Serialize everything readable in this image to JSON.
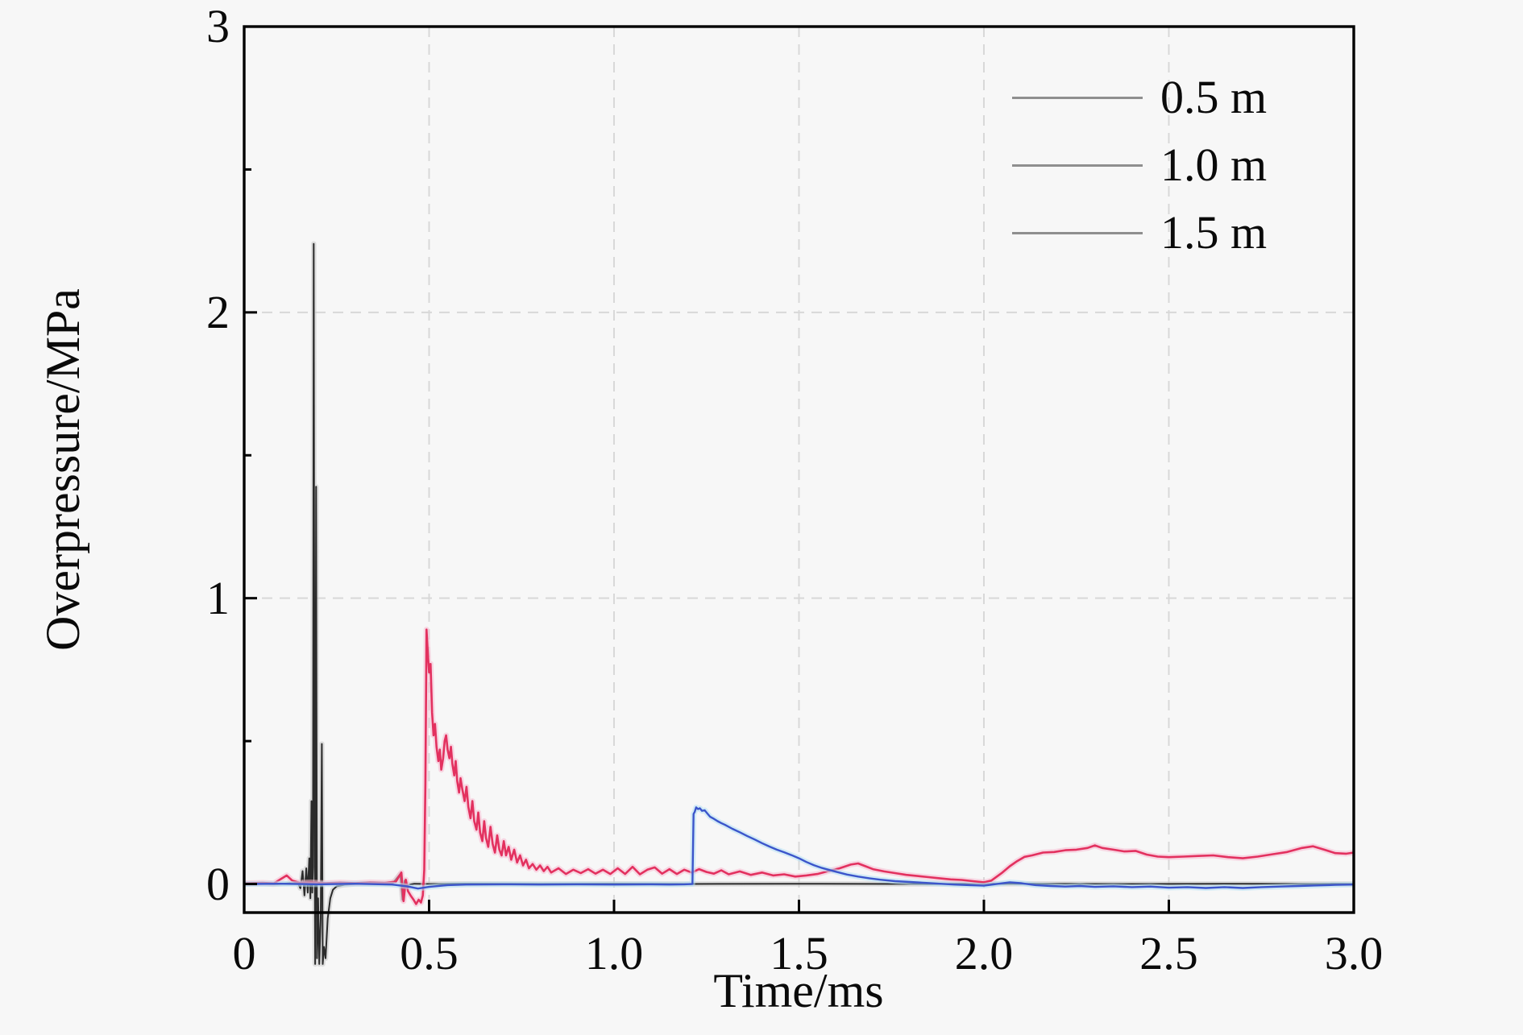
{
  "chart_data": {
    "type": "line",
    "title": "",
    "xlabel": "Time/ms",
    "ylabel": "Overpressure/MPa",
    "xlim": [
      0,
      3.0
    ],
    "ylim": [
      -0.1,
      3.0
    ],
    "background_color": "#f7f7f7",
    "frame_color": "#000000",
    "grid": {
      "style": "dashed",
      "color": "#d8d8d8",
      "x_values": [
        0.5,
        1.0,
        1.5,
        2.0,
        2.5
      ],
      "y_values": [
        1,
        2
      ]
    },
    "x_ticks": {
      "values": [
        0,
        0.5,
        1.0,
        1.5,
        2.0,
        2.5,
        3.0
      ],
      "labels": [
        "0",
        "0.5",
        "1.0",
        "1.5",
        "2.0",
        "2.5",
        "3.0"
      ]
    },
    "y_ticks": {
      "values": [
        0,
        1,
        2,
        3
      ],
      "labels": [
        "0",
        "1",
        "2",
        "3"
      ],
      "minor_values": [
        0.5,
        1.5,
        2.5
      ]
    },
    "legend": {
      "position": "top-right",
      "line_color": "#8f8f8f",
      "entries": [
        "0.5 m",
        "1.0 m",
        "1.5 m"
      ]
    },
    "series": [
      {
        "name": "0.5 m",
        "color": "#2b2b2b",
        "halo": "#c9c9c9",
        "width": 2.0,
        "points": [
          [
            0,
            0
          ],
          [
            0.04,
            0.001
          ],
          [
            0.08,
            -0.001
          ],
          [
            0.12,
            0.002
          ],
          [
            0.145,
            0.004
          ],
          [
            0.152,
            -0.015
          ],
          [
            0.158,
            0.045
          ],
          [
            0.163,
            -0.04
          ],
          [
            0.168,
            0.055
          ],
          [
            0.172,
            -0.03
          ],
          [
            0.176,
            0.09
          ],
          [
            0.179,
            -0.05
          ],
          [
            0.182,
            0.29
          ],
          [
            0.184,
            -0.03
          ],
          [
            0.186,
            0.06
          ],
          [
            0.188,
            2.24
          ],
          [
            0.1905,
            0.25
          ],
          [
            0.192,
            -0.28
          ],
          [
            0.1945,
            1.39
          ],
          [
            0.197,
            -0.26
          ],
          [
            0.2,
            -0.05
          ],
          [
            0.203,
            -0.28
          ],
          [
            0.207,
            -0.12
          ],
          [
            0.21,
            0.49
          ],
          [
            0.2125,
            -0.28
          ],
          [
            0.216,
            -0.22
          ],
          [
            0.22,
            -0.26
          ],
          [
            0.226,
            -0.12
          ],
          [
            0.233,
            -0.05
          ],
          [
            0.24,
            -0.02
          ],
          [
            0.25,
            -0.008
          ],
          [
            0.27,
            -0.003
          ],
          [
            0.3,
            0
          ],
          [
            0.35,
            0.001
          ],
          [
            0.4,
            0
          ],
          [
            0.422,
            0.035
          ],
          [
            0.428,
            -0.055
          ],
          [
            0.434,
            0.012
          ],
          [
            0.44,
            -0.004
          ],
          [
            0.46,
            0.001
          ],
          [
            0.5,
            0
          ],
          [
            0.6,
            0.001
          ],
          [
            0.8,
            0
          ],
          [
            1.0,
            0.001
          ],
          [
            1.2,
            0
          ],
          [
            1.5,
            0.001
          ],
          [
            1.8,
            0
          ],
          [
            2.1,
            0.001
          ],
          [
            2.4,
            0
          ],
          [
            2.7,
            0.001
          ],
          [
            3.0,
            0
          ]
        ]
      },
      {
        "name": "1.0 m",
        "color": "#e3315f",
        "halo": "#f8bcd2",
        "width": 2.6,
        "points": [
          [
            0,
            0.002
          ],
          [
            0.05,
            0.004
          ],
          [
            0.08,
            0.002
          ],
          [
            0.1,
            0.018
          ],
          [
            0.115,
            0.03
          ],
          [
            0.13,
            0.012
          ],
          [
            0.15,
            0.004
          ],
          [
            0.18,
            0.006
          ],
          [
            0.22,
            0.003
          ],
          [
            0.26,
            0.005
          ],
          [
            0.3,
            0.003
          ],
          [
            0.34,
            0.006
          ],
          [
            0.38,
            0.004
          ],
          [
            0.41,
            0.008
          ],
          [
            0.425,
            0.04
          ],
          [
            0.431,
            -0.06
          ],
          [
            0.437,
            0.015
          ],
          [
            0.443,
            -0.025
          ],
          [
            0.45,
            -0.04
          ],
          [
            0.458,
            -0.055
          ],
          [
            0.465,
            -0.07
          ],
          [
            0.472,
            -0.055
          ],
          [
            0.478,
            -0.065
          ],
          [
            0.483,
            -0.04
          ],
          [
            0.487,
            0.05
          ],
          [
            0.49,
            0.35
          ],
          [
            0.493,
            0.89
          ],
          [
            0.497,
            0.8
          ],
          [
            0.5,
            0.74
          ],
          [
            0.504,
            0.77
          ],
          [
            0.508,
            0.6
          ],
          [
            0.512,
            0.52
          ],
          [
            0.516,
            0.56
          ],
          [
            0.52,
            0.48
          ],
          [
            0.525,
            0.43
          ],
          [
            0.529,
            0.47
          ],
          [
            0.533,
            0.4
          ],
          [
            0.538,
            0.44
          ],
          [
            0.542,
            0.5
          ],
          [
            0.546,
            0.52
          ],
          [
            0.55,
            0.47
          ],
          [
            0.555,
            0.44
          ],
          [
            0.559,
            0.48
          ],
          [
            0.563,
            0.42
          ],
          [
            0.568,
            0.38
          ],
          [
            0.572,
            0.43
          ],
          [
            0.576,
            0.36
          ],
          [
            0.581,
            0.32
          ],
          [
            0.585,
            0.37
          ],
          [
            0.59,
            0.33
          ],
          [
            0.596,
            0.29
          ],
          [
            0.601,
            0.34
          ],
          [
            0.606,
            0.27
          ],
          [
            0.612,
            0.23
          ],
          [
            0.617,
            0.29
          ],
          [
            0.622,
            0.22
          ],
          [
            0.628,
            0.19
          ],
          [
            0.633,
            0.25
          ],
          [
            0.638,
            0.18
          ],
          [
            0.644,
            0.15
          ],
          [
            0.649,
            0.22
          ],
          [
            0.654,
            0.16
          ],
          [
            0.66,
            0.13
          ],
          [
            0.666,
            0.2
          ],
          [
            0.672,
            0.14
          ],
          [
            0.678,
            0.11
          ],
          [
            0.684,
            0.17
          ],
          [
            0.69,
            0.12
          ],
          [
            0.696,
            0.1
          ],
          [
            0.702,
            0.15
          ],
          [
            0.708,
            0.1
          ],
          [
            0.715,
            0.13
          ],
          [
            0.722,
            0.085
          ],
          [
            0.73,
            0.12
          ],
          [
            0.738,
            0.075
          ],
          [
            0.746,
            0.1
          ],
          [
            0.754,
            0.065
          ],
          [
            0.762,
            0.085
          ],
          [
            0.77,
            0.055
          ],
          [
            0.78,
            0.07
          ],
          [
            0.79,
            0.05
          ],
          [
            0.8,
            0.065
          ],
          [
            0.81,
            0.045
          ],
          [
            0.82,
            0.06
          ],
          [
            0.83,
            0.04
          ],
          [
            0.85,
            0.055
          ],
          [
            0.87,
            0.035
          ],
          [
            0.89,
            0.05
          ],
          [
            0.91,
            0.038
          ],
          [
            0.93,
            0.052
          ],
          [
            0.95,
            0.036
          ],
          [
            0.97,
            0.05
          ],
          [
            0.99,
            0.035
          ],
          [
            1.01,
            0.055
          ],
          [
            1.03,
            0.035
          ],
          [
            1.05,
            0.06
          ],
          [
            1.07,
            0.034
          ],
          [
            1.09,
            0.05
          ],
          [
            1.11,
            0.058
          ],
          [
            1.13,
            0.036
          ],
          [
            1.15,
            0.052
          ],
          [
            1.17,
            0.035
          ],
          [
            1.19,
            0.05
          ],
          [
            1.21,
            0.04
          ],
          [
            1.23,
            0.052
          ],
          [
            1.25,
            0.042
          ],
          [
            1.27,
            0.036
          ],
          [
            1.29,
            0.048
          ],
          [
            1.31,
            0.034
          ],
          [
            1.34,
            0.044
          ],
          [
            1.37,
            0.032
          ],
          [
            1.4,
            0.04
          ],
          [
            1.43,
            0.03
          ],
          [
            1.46,
            0.034
          ],
          [
            1.49,
            0.026
          ],
          [
            1.52,
            0.03
          ],
          [
            1.55,
            0.035
          ],
          [
            1.58,
            0.045
          ],
          [
            1.61,
            0.055
          ],
          [
            1.64,
            0.068
          ],
          [
            1.66,
            0.072
          ],
          [
            1.68,
            0.062
          ],
          [
            1.7,
            0.052
          ],
          [
            1.73,
            0.044
          ],
          [
            1.76,
            0.038
          ],
          [
            1.79,
            0.032
          ],
          [
            1.82,
            0.028
          ],
          [
            1.85,
            0.024
          ],
          [
            1.88,
            0.02
          ],
          [
            1.91,
            0.016
          ],
          [
            1.94,
            0.014
          ],
          [
            1.97,
            0.01
          ],
          [
            2.0,
            0.006
          ],
          [
            2.02,
            0.012
          ],
          [
            2.05,
            0.04
          ],
          [
            2.07,
            0.062
          ],
          [
            2.09,
            0.08
          ],
          [
            2.11,
            0.095
          ],
          [
            2.13,
            0.1
          ],
          [
            2.16,
            0.11
          ],
          [
            2.19,
            0.112
          ],
          [
            2.22,
            0.118
          ],
          [
            2.25,
            0.12
          ],
          [
            2.28,
            0.126
          ],
          [
            2.3,
            0.135
          ],
          [
            2.32,
            0.126
          ],
          [
            2.35,
            0.12
          ],
          [
            2.38,
            0.114
          ],
          [
            2.41,
            0.116
          ],
          [
            2.44,
            0.103
          ],
          [
            2.47,
            0.096
          ],
          [
            2.5,
            0.094
          ],
          [
            2.54,
            0.096
          ],
          [
            2.58,
            0.098
          ],
          [
            2.62,
            0.1
          ],
          [
            2.66,
            0.094
          ],
          [
            2.7,
            0.09
          ],
          [
            2.74,
            0.096
          ],
          [
            2.78,
            0.104
          ],
          [
            2.82,
            0.112
          ],
          [
            2.86,
            0.126
          ],
          [
            2.89,
            0.132
          ],
          [
            2.92,
            0.12
          ],
          [
            2.95,
            0.108
          ],
          [
            2.98,
            0.106
          ],
          [
            3.0,
            0.11
          ]
        ]
      },
      {
        "name": "1.5 m",
        "color": "#3b55cb",
        "halo": "#b4e0f6",
        "width": 2.4,
        "points": [
          [
            0,
            0
          ],
          [
            0.1,
            0.001
          ],
          [
            0.2,
            -0.001
          ],
          [
            0.3,
            0.001
          ],
          [
            0.4,
            -0.002
          ],
          [
            0.44,
            -0.008
          ],
          [
            0.47,
            -0.016
          ],
          [
            0.5,
            -0.01
          ],
          [
            0.55,
            -0.004
          ],
          [
            0.6,
            -0.002
          ],
          [
            0.7,
            -0.001
          ],
          [
            0.8,
            -0.002
          ],
          [
            0.9,
            -0.001
          ],
          [
            1.0,
            -0.002
          ],
          [
            1.1,
            -0.001
          ],
          [
            1.15,
            -0.002
          ],
          [
            1.19,
            -0.001
          ],
          [
            1.212,
            0
          ],
          [
            1.215,
            0.245
          ],
          [
            1.218,
            0.252
          ],
          [
            1.222,
            0.268
          ],
          [
            1.227,
            0.262
          ],
          [
            1.232,
            0.265
          ],
          [
            1.238,
            0.256
          ],
          [
            1.245,
            0.258
          ],
          [
            1.252,
            0.247
          ],
          [
            1.26,
            0.235
          ],
          [
            1.27,
            0.228
          ],
          [
            1.28,
            0.22
          ],
          [
            1.29,
            0.213
          ],
          [
            1.3,
            0.207
          ],
          [
            1.32,
            0.193
          ],
          [
            1.34,
            0.181
          ],
          [
            1.36,
            0.168
          ],
          [
            1.38,
            0.156
          ],
          [
            1.4,
            0.143
          ],
          [
            1.42,
            0.131
          ],
          [
            1.44,
            0.12
          ],
          [
            1.46,
            0.111
          ],
          [
            1.48,
            0.101
          ],
          [
            1.5,
            0.09
          ],
          [
            1.52,
            0.077
          ],
          [
            1.54,
            0.066
          ],
          [
            1.56,
            0.057
          ],
          [
            1.58,
            0.05
          ],
          [
            1.6,
            0.043
          ],
          [
            1.63,
            0.033
          ],
          [
            1.66,
            0.026
          ],
          [
            1.69,
            0.02
          ],
          [
            1.72,
            0.015
          ],
          [
            1.76,
            0.01
          ],
          [
            1.8,
            0.007
          ],
          [
            1.84,
            0.004
          ],
          [
            1.88,
            0.001
          ],
          [
            1.92,
            -0.002
          ],
          [
            1.96,
            -0.004
          ],
          [
            2.0,
            -0.006
          ],
          [
            2.04,
            0.001
          ],
          [
            2.07,
            0.006
          ],
          [
            2.1,
            0.003
          ],
          [
            2.14,
            -0.004
          ],
          [
            2.18,
            -0.007
          ],
          [
            2.22,
            -0.009
          ],
          [
            2.26,
            -0.007
          ],
          [
            2.3,
            -0.01
          ],
          [
            2.35,
            -0.008
          ],
          [
            2.4,
            -0.011
          ],
          [
            2.45,
            -0.009
          ],
          [
            2.5,
            -0.013
          ],
          [
            2.55,
            -0.011
          ],
          [
            2.6,
            -0.014
          ],
          [
            2.65,
            -0.011
          ],
          [
            2.7,
            -0.014
          ],
          [
            2.75,
            -0.011
          ],
          [
            2.8,
            -0.009
          ],
          [
            2.85,
            -0.007
          ],
          [
            2.9,
            -0.005
          ],
          [
            2.95,
            -0.003
          ],
          [
            3.0,
            -0.002
          ]
        ]
      }
    ]
  }
}
